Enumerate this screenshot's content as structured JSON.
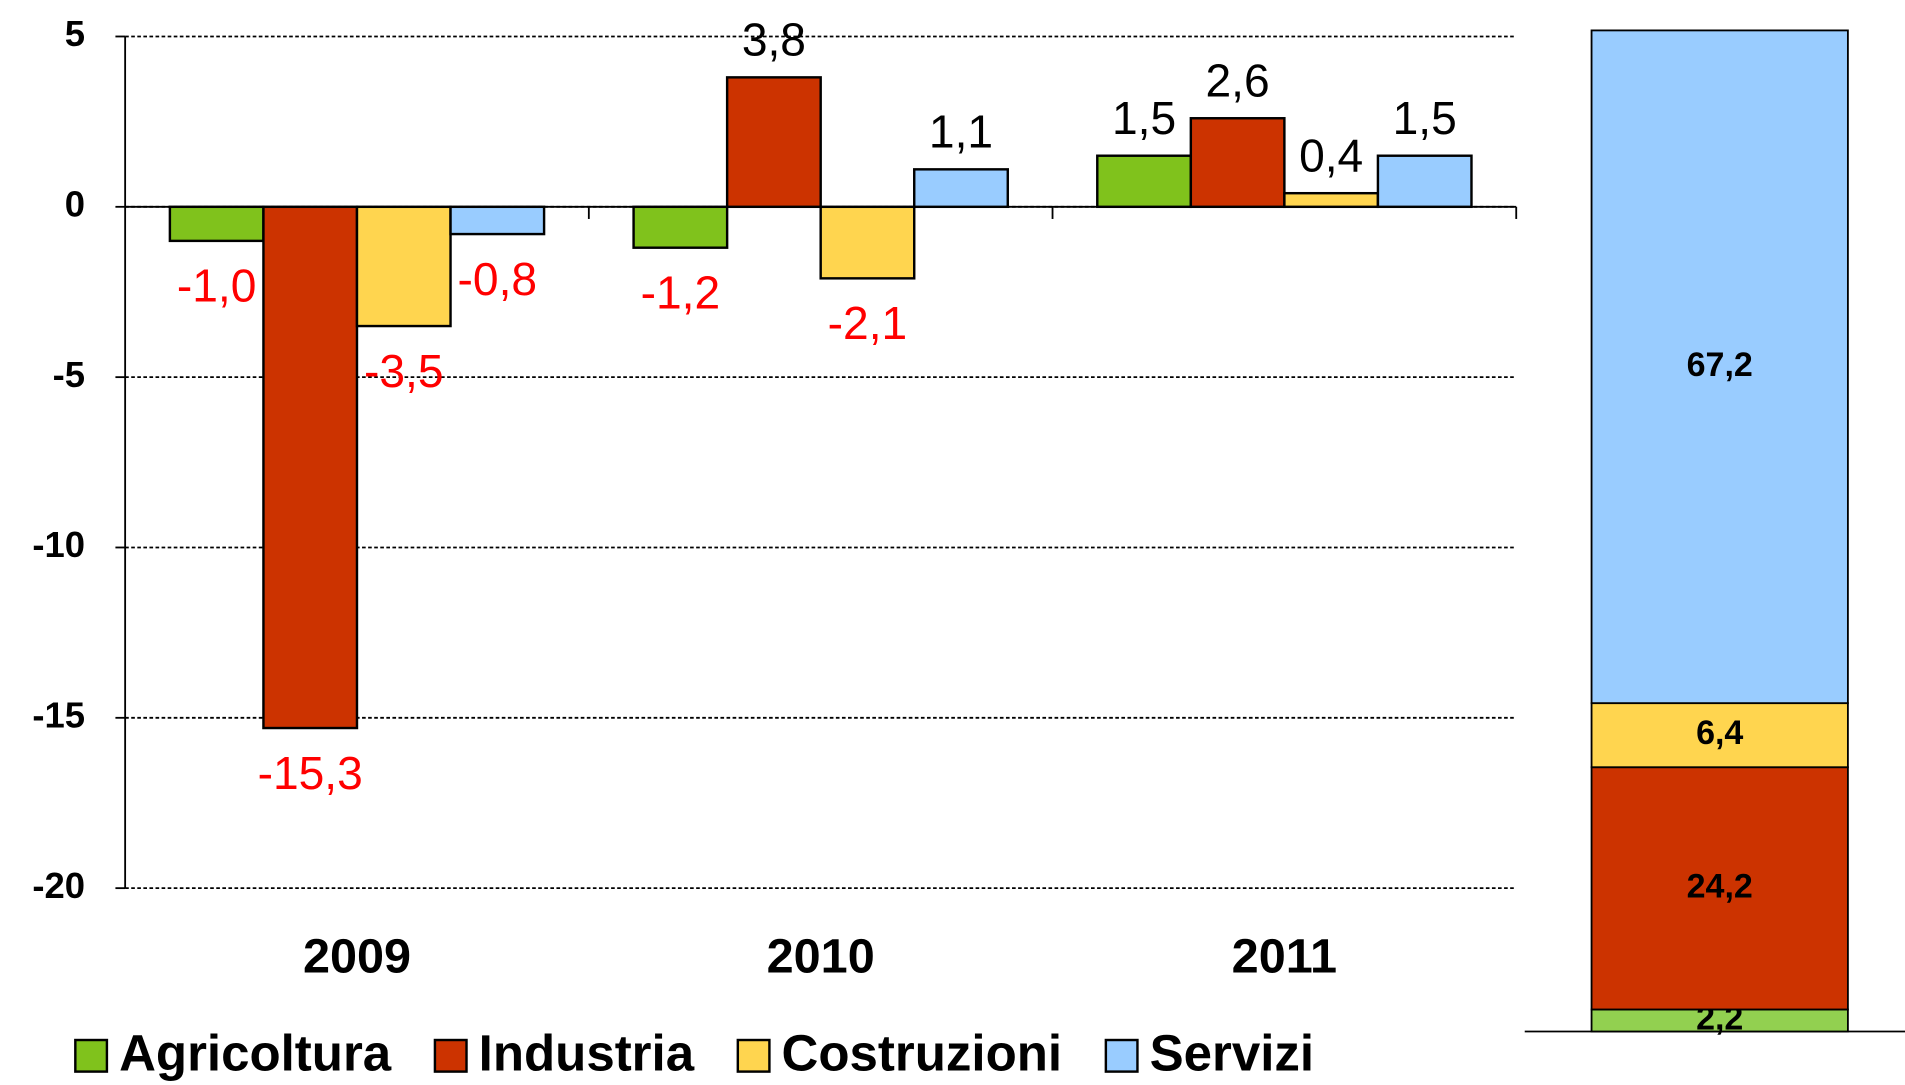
{
  "chart_data": [
    {
      "type": "bar",
      "categories": [
        "2009",
        "2010",
        "2011"
      ],
      "series": [
        {
          "name": "Agricoltura",
          "color": "#80c21c",
          "values": [
            -1.0,
            -1.2,
            1.5
          ],
          "value_labels": [
            "-1,0",
            "-1,2",
            "1,5"
          ]
        },
        {
          "name": "Industria",
          "color": "#cc3300",
          "values": [
            -15.3,
            3.8,
            2.6
          ],
          "value_labels": [
            "-15,3",
            "3,8",
            "2,6"
          ]
        },
        {
          "name": "Costruzioni",
          "color": "#ffd54f",
          "values": [
            -3.5,
            -2.1,
            0.4
          ],
          "value_labels": [
            "-3,5",
            "-2,1",
            "0,4"
          ]
        },
        {
          "name": "Servizi",
          "color": "#99ccff",
          "values": [
            -0.8,
            1.1,
            1.5
          ],
          "value_labels": [
            "-0,8",
            "1,1",
            "1,5"
          ]
        }
      ],
      "ylim": [
        -20,
        5
      ],
      "yticks": [
        -20,
        -15,
        -10,
        -5,
        0,
        5
      ],
      "grid": true,
      "legend": "bottom"
    },
    {
      "type": "stacked-bar",
      "categories": [
        null
      ],
      "series": [
        {
          "color": "#92d050",
          "values": [
            2.2
          ],
          "value_labels": [
            "2,2"
          ]
        },
        {
          "color": "#cc3300",
          "values": [
            24.2
          ],
          "value_labels": [
            "24,2"
          ]
        },
        {
          "color": "#ffd54f",
          "values": [
            6.4
          ],
          "value_labels": [
            "6,4"
          ]
        },
        {
          "color": "#99ccff",
          "values": [
            67.2
          ],
          "value_labels": [
            "67,2"
          ]
        }
      ],
      "ylim": [
        0,
        100
      ]
    }
  ]
}
